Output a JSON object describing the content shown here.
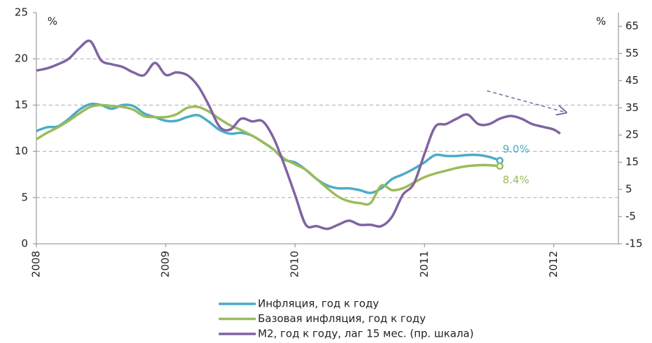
{
  "chart_data": {
    "type": "line",
    "y_unit": "%",
    "y2_unit": "%",
    "xlim": [
      2008,
      2012.5
    ],
    "xticks": [
      2008,
      2009,
      2010,
      2011,
      2012
    ],
    "ylim": [
      0,
      25
    ],
    "yticks": [
      0,
      5,
      10,
      15,
      20,
      25
    ],
    "y2lim": [
      -15,
      70
    ],
    "y2ticks": [
      -15,
      -5,
      5,
      15,
      25,
      35,
      45,
      55,
      65
    ],
    "grid": true,
    "series": [
      {
        "name": "Инфляция, год к году",
        "color": "#4bacc6",
        "x": [
          2008,
          2008.083,
          2008.167,
          2008.25,
          2008.333,
          2008.417,
          2008.5,
          2008.583,
          2008.667,
          2008.75,
          2008.833,
          2008.917,
          2009,
          2009.083,
          2009.167,
          2009.25,
          2009.333,
          2009.417,
          2009.5,
          2009.583,
          2009.667,
          2009.75,
          2009.833,
          2009.917,
          2010,
          2010.083,
          2010.167,
          2010.25,
          2010.333,
          2010.417,
          2010.5,
          2010.583,
          2010.667,
          2010.75,
          2010.833,
          2010.917,
          2011,
          2011.083,
          2011.167,
          2011.25,
          2011.333,
          2011.417,
          2011.5,
          2011.583
        ],
        "values": [
          12.2,
          12.6,
          12.7,
          13.5,
          14.5,
          15.1,
          15.0,
          14.6,
          15.0,
          14.9,
          14.1,
          13.7,
          13.3,
          13.3,
          13.7,
          13.9,
          13.2,
          12.3,
          11.9,
          12.0,
          11.7,
          11.0,
          10.2,
          9.1,
          8.8,
          8.0,
          7.0,
          6.3,
          6.0,
          6.0,
          5.8,
          5.5,
          6.0,
          7.0,
          7.5,
          8.1,
          8.8,
          9.6,
          9.5,
          9.5,
          9.6,
          9.6,
          9.4,
          9.0
        ],
        "value_labels": [
          null,
          null,
          null,
          null,
          null,
          null,
          null,
          null,
          null,
          null,
          null,
          null,
          null,
          null,
          null,
          null,
          null,
          null,
          null,
          null,
          null,
          null,
          null,
          null,
          null,
          null,
          null,
          null,
          null,
          null,
          null,
          null,
          null,
          null,
          null,
          null,
          null,
          null,
          null,
          null,
          null,
          null,
          null,
          "9.0%"
        ]
      },
      {
        "name": "Базовая инфляция, год к году",
        "color": "#9bbb59",
        "x": [
          2008,
          2008.083,
          2008.167,
          2008.25,
          2008.333,
          2008.417,
          2008.5,
          2008.583,
          2008.667,
          2008.75,
          2008.833,
          2008.917,
          2009,
          2009.083,
          2009.167,
          2009.25,
          2009.333,
          2009.417,
          2009.5,
          2009.583,
          2009.667,
          2009.75,
          2009.833,
          2009.917,
          2010,
          2010.083,
          2010.167,
          2010.25,
          2010.333,
          2010.417,
          2010.5,
          2010.583,
          2010.667,
          2010.75,
          2010.833,
          2010.917,
          2011,
          2011.083,
          2011.167,
          2011.25,
          2011.333,
          2011.417,
          2011.5,
          2011.583
        ],
        "values": [
          11.3,
          12.0,
          12.6,
          13.3,
          14.1,
          14.8,
          15.0,
          14.9,
          14.8,
          14.5,
          13.8,
          13.7,
          13.7,
          14.0,
          14.7,
          14.8,
          14.3,
          13.5,
          12.8,
          12.3,
          11.7,
          11.0,
          10.2,
          9.2,
          8.6,
          8.0,
          7.0,
          6.0,
          5.1,
          4.6,
          4.4,
          4.4,
          6.3,
          5.8,
          6.0,
          6.6,
          7.2,
          7.6,
          7.9,
          8.2,
          8.4,
          8.5,
          8.5,
          8.4
        ],
        "value_labels": [
          null,
          null,
          null,
          null,
          null,
          null,
          null,
          null,
          null,
          null,
          null,
          null,
          null,
          null,
          null,
          null,
          null,
          null,
          null,
          null,
          null,
          null,
          null,
          null,
          null,
          null,
          null,
          null,
          null,
          null,
          null,
          null,
          null,
          null,
          null,
          null,
          null,
          null,
          null,
          null,
          null,
          null,
          null,
          "8.4%"
        ]
      },
      {
        "name": "М2, год к году, лаг 15 мес. (пр. шкала)",
        "color": "#8064a2",
        "axis": "y2",
        "x": [
          2008,
          2008.083,
          2008.167,
          2008.25,
          2008.333,
          2008.417,
          2008.5,
          2008.583,
          2008.667,
          2008.75,
          2008.833,
          2008.917,
          2009,
          2009.083,
          2009.167,
          2009.25,
          2009.333,
          2009.417,
          2009.5,
          2009.583,
          2009.667,
          2009.75,
          2009.833,
          2009.917,
          2010,
          2010.083,
          2010.167,
          2010.25,
          2010.333,
          2010.417,
          2010.5,
          2010.583,
          2010.667,
          2010.75,
          2010.833,
          2010.917,
          2011,
          2011.083,
          2011.167,
          2011.25,
          2011.333,
          2011.417,
          2011.5,
          2011.583,
          2011.667,
          2011.75,
          2011.833,
          2011.917,
          2012,
          2012.05
        ],
        "values": [
          48.7,
          49.5,
          51,
          53,
          57,
          59.5,
          52.5,
          51,
          50,
          48,
          47,
          51.5,
          47.1,
          48,
          47,
          43,
          36,
          28,
          27,
          31,
          30,
          30,
          24,
          14,
          3,
          -8,
          -8.5,
          -9.5,
          -8,
          -6.5,
          -8,
          -8,
          -8.5,
          -5,
          3,
          7,
          18,
          28,
          29,
          31,
          32.5,
          29,
          29,
          31,
          32,
          31,
          29,
          28,
          27,
          25.5
        ]
      }
    ]
  }
}
